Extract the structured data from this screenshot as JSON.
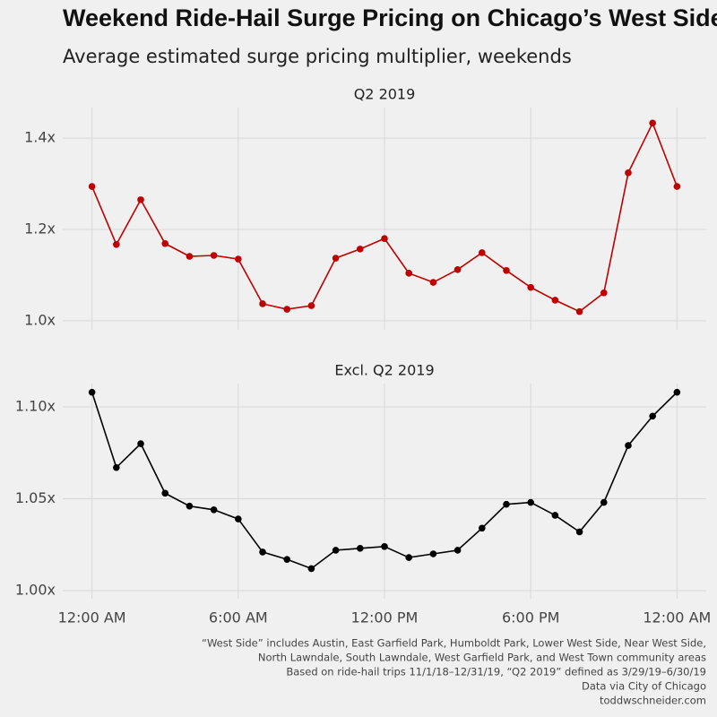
{
  "title": "Weekend Ride-Hail Surge Pricing on Chicago’s West Side",
  "subtitle": "Average estimated surge pricing multiplier, weekends",
  "caption": [
    "“West Side” includes Austin, East Garfield Park, Humboldt Park, Lower West Side, Near West Side,",
    "North Lawndale, South Lawndale, West Garfield Park, and West Town community areas",
    "Based on ride-hail trips 11/1/18–12/31/19, “Q2 2019” defined as 3/29/19–6/30/19",
    "Data via City of Chicago",
    "toddwschneider.com"
  ],
  "chart_data": [
    {
      "type": "line",
      "title": "Q2 2019",
      "x": [
        0,
        1,
        2,
        3,
        4,
        5,
        6,
        7,
        8,
        9,
        10,
        11,
        12,
        13,
        14,
        15,
        16,
        17,
        18,
        19,
        20,
        21,
        22,
        23,
        24
      ],
      "series": [
        {
          "color": "#c00000",
          "values": [
            1.294,
            1.167,
            1.265,
            1.169,
            1.141,
            1.143,
            1.135,
            1.037,
            1.025,
            1.033,
            1.137,
            1.157,
            1.18,
            1.104,
            1.084,
            1.112,
            1.149,
            1.11,
            1.073,
            1.045,
            1.02,
            1.061,
            1.324,
            1.433,
            1.294
          ]
        }
      ],
      "xlim": [
        -1.2,
        25.2
      ],
      "xticks": [
        0,
        6,
        12,
        18,
        24
      ],
      "ylim": [
        0.98,
        1.467
      ],
      "yticks": [
        {
          "value": 1.0,
          "label": "1.0x"
        },
        {
          "value": 1.2,
          "label": "1.2x"
        },
        {
          "value": 1.4,
          "label": "1.4x"
        }
      ],
      "grid": true
    },
    {
      "type": "line",
      "title": "Excl. Q2 2019",
      "x": [
        0,
        1,
        2,
        3,
        4,
        5,
        6,
        7,
        8,
        9,
        10,
        11,
        12,
        13,
        14,
        15,
        16,
        17,
        18,
        19,
        20,
        21,
        22,
        23,
        24
      ],
      "series": [
        {
          "color": "#000000",
          "values": [
            1.108,
            1.067,
            1.08,
            1.053,
            1.046,
            1.044,
            1.039,
            1.021,
            1.017,
            1.012,
            1.022,
            1.023,
            1.024,
            1.018,
            1.02,
            1.022,
            1.034,
            1.047,
            1.048,
            1.041,
            1.032,
            1.048,
            1.079,
            1.095,
            1.108
          ]
        }
      ],
      "xlim": [
        -1.2,
        25.2
      ],
      "xticks": [
        {
          "value": 0,
          "label": "12:00 AM"
        },
        {
          "value": 6,
          "label": "6:00 AM"
        },
        {
          "value": 12,
          "label": "12:00 PM"
        },
        {
          "value": 18,
          "label": "6:00 PM"
        },
        {
          "value": 24,
          "label": "12:00 AM"
        }
      ],
      "ylim": [
        0.9956,
        1.1127
      ],
      "yticks": [
        {
          "value": 1.0,
          "label": "1.00x"
        },
        {
          "value": 1.05,
          "label": "1.05x"
        },
        {
          "value": 1.1,
          "label": "1.10x"
        }
      ],
      "grid": true
    }
  ]
}
